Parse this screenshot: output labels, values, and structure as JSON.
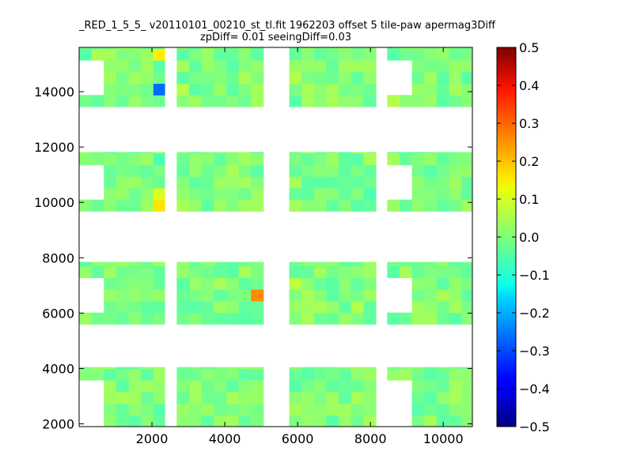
{
  "chart_data": {
    "type": "heatmap",
    "title": "_RED_1_5_5_ v20110101_00210_st_tl.fit 1962203 offset 5 tile-paw apermag3Diff",
    "subtitle": "zpDiff= 0.01 seeingDiff=0.03",
    "xlabel": "",
    "ylabel": "",
    "xlim": [
      0,
      10800
    ],
    "ylim": [
      1900,
      15600
    ],
    "x_ticks": [
      2000,
      4000,
      6000,
      8000,
      10000
    ],
    "y_ticks": [
      2000,
      4000,
      6000,
      8000,
      10000,
      12000,
      14000
    ],
    "colorbar": {
      "colormap": "jet",
      "range": [
        -0.5,
        0.5
      ],
      "ticks": [
        "0.5",
        "0.4",
        "0.3",
        "0.2",
        "0.1",
        "0.0",
        "−0.1",
        "−0.2",
        "−0.3",
        "−0.4",
        "−0.5"
      ]
    },
    "cell_size": [
      340,
      420
    ],
    "columns": [
      {
        "x": [
          0,
          2350
        ],
        "notch_x": [
          0,
          650
        ]
      },
      {
        "x": [
          2680,
          5060
        ]
      },
      {
        "x": [
          5770,
          8150
        ]
      },
      {
        "x": [
          8460,
          10800
        ],
        "notch_x": [
          8460,
          9000
        ]
      }
    ],
    "rows": [
      {
        "y": [
          1900,
          4050
        ],
        "notch_y": [
          1900,
          3750
        ]
      },
      {
        "y": [
          5600,
          7850
        ],
        "notch_y": [
          5950,
          7320
        ]
      },
      {
        "y": [
          9680,
          11820
        ],
        "notch_y": [
          9980,
          11430
        ]
      },
      {
        "y": [
          13460,
          15600
        ],
        "notch_y": [
          13830,
          15200
        ]
      }
    ],
    "typical_value": 0.0,
    "highlights": [
      {
        "x": 2170,
        "y": 15500,
        "value": 0.14
      },
      {
        "x": 2170,
        "y": 14080,
        "value": -0.27
      },
      {
        "x": 2170,
        "y": 11650,
        "value": -0.05
      },
      {
        "x": 2170,
        "y": 10300,
        "value": 0.09
      },
      {
        "x": 2170,
        "y": 9920,
        "value": 0.15
      },
      {
        "x": 4880,
        "y": 6500,
        "value": 0.24
      },
      {
        "x": 4880,
        "y": 6850,
        "value": 0.06
      },
      {
        "x": 7530,
        "y": 6320,
        "value": 0.05
      },
      {
        "x": 9360,
        "y": 5450,
        "value": -0.06
      },
      {
        "x": 10050,
        "y": 5450,
        "value": -0.05
      },
      {
        "x": 8010,
        "y": 10380,
        "value": -0.05
      },
      {
        "x": 6010,
        "y": 6880,
        "value": 0.06
      },
      {
        "x": 6010,
        "y": 5450,
        "value": 0.05
      },
      {
        "x": 170,
        "y": 6050,
        "value": 0.06
      },
      {
        "x": 5940,
        "y": 14500,
        "value": 0.05
      },
      {
        "x": 8630,
        "y": 13620,
        "value": 0.05
      },
      {
        "x": 2780,
        "y": 14080,
        "value": 0.05
      }
    ]
  }
}
